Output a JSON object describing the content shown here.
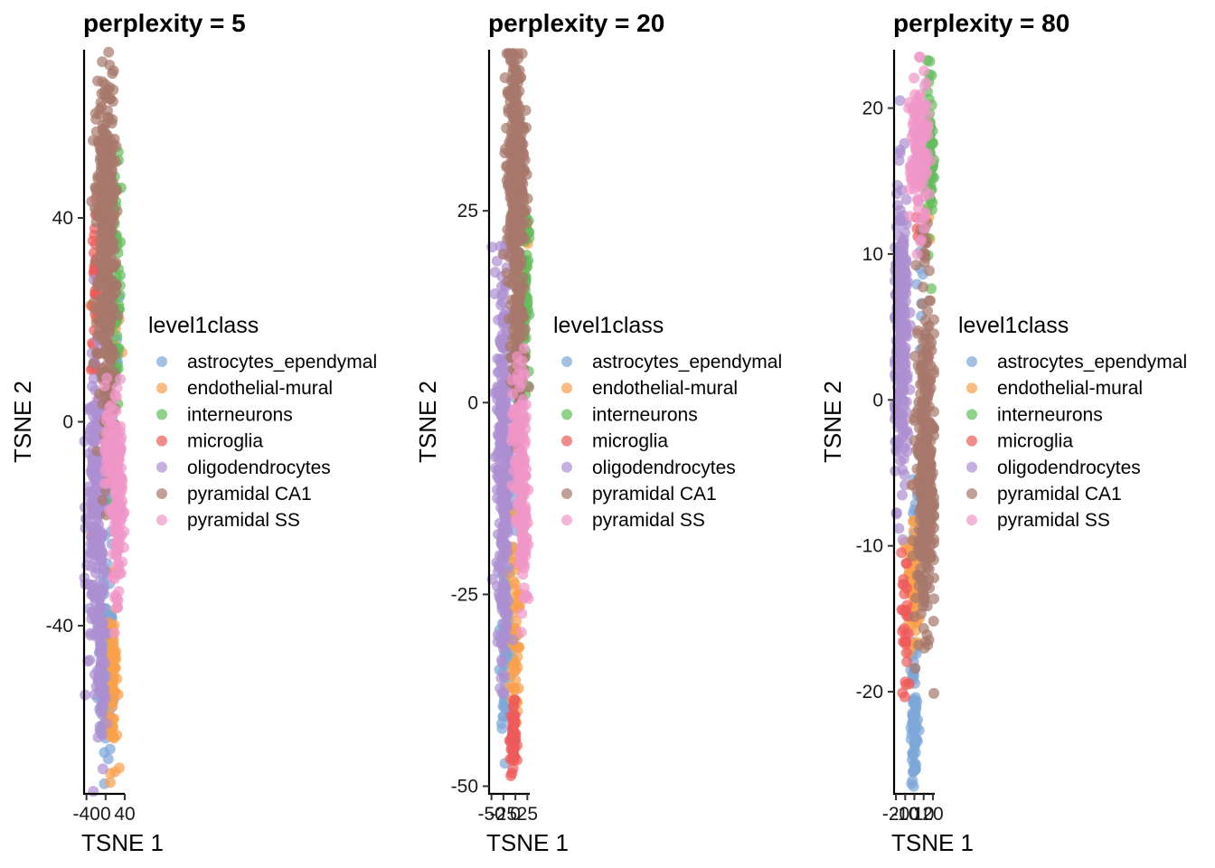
{
  "chart_data": [
    {
      "type": "scatter",
      "title": "perplexity = 5",
      "xlabel": "TSNE 1",
      "ylabel": "TSNE 2",
      "x_ticks": [
        "-40",
        "0",
        "40"
      ],
      "x_tick_values": [
        -40,
        0,
        40
      ],
      "y_ticks": [
        "40",
        "0",
        "-40"
      ],
      "y_tick_values": [
        40,
        0,
        -40
      ],
      "xlim": [
        -45,
        40
      ],
      "ylim": [
        -73,
        73
      ],
      "legend_title": "level1class",
      "legend_position": "right",
      "grid": false,
      "series": [
        {
          "name": "astrocytes_ependymal",
          "color": "#7DA7D8",
          "clusters": [
            {
              "x": 0,
              "y": -50,
              "sx": 8,
              "sy": 8,
              "n": 90
            },
            {
              "x": 5,
              "y": -12,
              "sx": 6,
              "sy": 14,
              "n": 35
            },
            {
              "x": 22,
              "y": 17,
              "sx": 4,
              "sy": 5,
              "n": 10
            }
          ]
        },
        {
          "name": "endothelial-mural",
          "color": "#F9A04B",
          "clusters": [
            {
              "x": 15,
              "y": -50,
              "sx": 5,
              "sy": 9,
              "n": 70
            },
            {
              "x": 10,
              "y": 42,
              "sx": 5,
              "sy": 3,
              "n": 12
            },
            {
              "x": -25,
              "y": 25,
              "sx": 3,
              "sy": 3,
              "n": 5
            },
            {
              "x": 20,
              "y": 15,
              "sx": 5,
              "sy": 5,
              "n": 6
            }
          ]
        },
        {
          "name": "interneurons",
          "color": "#63BE5B",
          "clusters": [
            {
              "x": 22,
              "y": 25,
              "sx": 5,
              "sy": 12,
              "n": 70
            }
          ]
        },
        {
          "name": "microglia",
          "color": "#EE5A5A",
          "clusters": [
            {
              "x": -22,
              "y": 25,
              "sx": 4,
              "sy": 8,
              "n": 35
            },
            {
              "x": -28,
              "y": -22,
              "sx": 2,
              "sy": 5,
              "n": 5
            }
          ]
        },
        {
          "name": "oligodendrocytes",
          "color": "#AD8FD1",
          "clusters": [
            {
              "x": -20,
              "y": -18,
              "sx": 10,
              "sy": 14,
              "n": 230
            },
            {
              "x": -10,
              "y": -50,
              "sx": 6,
              "sy": 10,
              "n": 60
            }
          ]
        },
        {
          "name": "pyramidal CA1",
          "color": "#A7786B",
          "clusters": [
            {
              "x": 0,
              "y": 40,
              "sx": 10,
              "sy": 14,
              "n": 350
            },
            {
              "x": 5,
              "y": 10,
              "sx": 8,
              "sy": 9,
              "n": 100
            }
          ]
        },
        {
          "name": "pyramidal SS",
          "color": "#F096C8",
          "clusters": [
            {
              "x": 25,
              "y": -15,
              "sx": 5,
              "sy": 9,
              "n": 150
            },
            {
              "x": 5,
              "y": -5,
              "sx": 6,
              "sy": 5,
              "n": 40
            }
          ]
        }
      ]
    },
    {
      "type": "scatter",
      "title": "perplexity = 20",
      "xlabel": "TSNE 1",
      "ylabel": "TSNE 2",
      "x_ticks": [
        "-50",
        "-25",
        "0",
        "25"
      ],
      "x_tick_values": [
        -50,
        -25,
        0,
        25
      ],
      "y_ticks": [
        "25",
        "0",
        "-25",
        "-50"
      ],
      "y_tick_values": [
        25,
        0,
        -25,
        -50
      ],
      "xlim": [
        -55,
        30
      ],
      "ylim": [
        -51,
        46
      ],
      "legend_title": "level1class",
      "legend_position": "right",
      "grid": false,
      "series": [
        {
          "name": "astrocytes_ependymal",
          "color": "#7DA7D8",
          "clusters": [
            {
              "x": -20,
              "y": -30,
              "sx": 5,
              "sy": 8,
              "n": 60
            },
            {
              "x": 0,
              "y": -5,
              "sx": 6,
              "sy": 10,
              "n": 30
            },
            {
              "x": -25,
              "y": -40,
              "sx": 3,
              "sy": 2,
              "n": 8
            }
          ]
        },
        {
          "name": "endothelial-mural",
          "color": "#F9A04B",
          "clusters": [
            {
              "x": 0,
              "y": -30,
              "sx": 5,
              "sy": 6,
              "n": 60
            },
            {
              "x": 20,
              "y": 20,
              "sx": 3,
              "sy": 2,
              "n": 6
            },
            {
              "x": -5,
              "y": 5,
              "sx": 3,
              "sy": 2,
              "n": 4
            }
          ]
        },
        {
          "name": "interneurons",
          "color": "#63BE5B",
          "clusters": [
            {
              "x": 20,
              "y": 15,
              "sx": 4,
              "sy": 6,
              "n": 60
            }
          ]
        },
        {
          "name": "microglia",
          "color": "#EE5A5A",
          "clusters": [
            {
              "x": -5,
              "y": -44,
              "sx": 3,
              "sy": 2.5,
              "n": 50
            },
            {
              "x": 5,
              "y": -7,
              "sx": 3,
              "sy": 2,
              "n": 5
            }
          ]
        },
        {
          "name": "oligodendrocytes",
          "color": "#AD8FD1",
          "clusters": [
            {
              "x": -25,
              "y": -5,
              "sx": 7,
              "sy": 12,
              "n": 260
            },
            {
              "x": -25,
              "y": -28,
              "sx": 4,
              "sy": 6,
              "n": 30
            }
          ]
        },
        {
          "name": "pyramidal CA1",
          "color": "#A7786B",
          "clusters": [
            {
              "x": 0,
              "y": 30,
              "sx": 9,
              "sy": 8,
              "n": 350
            },
            {
              "x": 5,
              "y": 8,
              "sx": 7,
              "sy": 6,
              "n": 100
            }
          ]
        },
        {
          "name": "pyramidal SS",
          "color": "#F096C8",
          "clusters": [
            {
              "x": 15,
              "y": -12,
              "sx": 5,
              "sy": 8,
              "n": 130
            },
            {
              "x": 0,
              "y": -3,
              "sx": 5,
              "sy": 4,
              "n": 30
            }
          ]
        }
      ]
    },
    {
      "type": "scatter",
      "title": "perplexity = 80",
      "xlabel": "TSNE 1",
      "ylabel": "TSNE 2",
      "x_ticks": [
        "-20",
        "-10",
        "0",
        "10",
        "20"
      ],
      "x_tick_values": [
        -20,
        -10,
        0,
        10,
        20
      ],
      "y_ticks": [
        "20",
        "10",
        "0",
        "-10",
        "-20"
      ],
      "y_tick_values": [
        20,
        10,
        0,
        -10,
        -20
      ],
      "xlim": [
        -22,
        22
      ],
      "ylim": [
        -27,
        24
      ],
      "legend_title": "level1class",
      "legend_position": "right",
      "grid": false,
      "series": [
        {
          "name": "astrocytes_ependymal",
          "color": "#7DA7D8",
          "clusters": [
            {
              "x": 0,
              "y": -22,
              "sx": 2,
              "sy": 2.5,
              "n": 70
            },
            {
              "x": 3,
              "y": -8,
              "sx": 3,
              "sy": 2,
              "n": 20
            },
            {
              "x": 5,
              "y": 8,
              "sx": 2,
              "sy": 1.5,
              "n": 8
            }
          ]
        },
        {
          "name": "endothelial-mural",
          "color": "#F9A04B",
          "clusters": [
            {
              "x": -2,
              "y": -12,
              "sx": 3,
              "sy": 2.5,
              "n": 70
            },
            {
              "x": 15,
              "y": 14,
              "sx": 2,
              "sy": 2,
              "n": 8
            }
          ]
        },
        {
          "name": "interneurons",
          "color": "#63BE5B",
          "clusters": [
            {
              "x": 17,
              "y": 17,
              "sx": 2,
              "sy": 3,
              "n": 60
            }
          ]
        },
        {
          "name": "microglia",
          "color": "#EE5A5A",
          "clusters": [
            {
              "x": -10,
              "y": -16,
              "sx": 2,
              "sy": 2.5,
              "n": 30
            },
            {
              "x": 5,
              "y": 11,
              "sx": 2,
              "sy": 1.5,
              "n": 5
            }
          ]
        },
        {
          "name": "oligodendrocytes",
          "color": "#AD8FD1",
          "clusters": [
            {
              "x": -14,
              "y": 4,
              "sx": 4,
              "sy": 5,
              "n": 260
            }
          ]
        },
        {
          "name": "pyramidal CA1",
          "color": "#A7786B",
          "clusters": [
            {
              "x": 12,
              "y": -5,
              "sx": 5,
              "sy": 5,
              "n": 360
            },
            {
              "x": 10,
              "y": 11,
              "sx": 3,
              "sy": 1.5,
              "n": 15
            }
          ]
        },
        {
          "name": "pyramidal SS",
          "color": "#F096C8",
          "clusters": [
            {
              "x": 5,
              "y": 17,
              "sx": 5,
              "sy": 2.5,
              "n": 150
            }
          ]
        }
      ]
    }
  ]
}
